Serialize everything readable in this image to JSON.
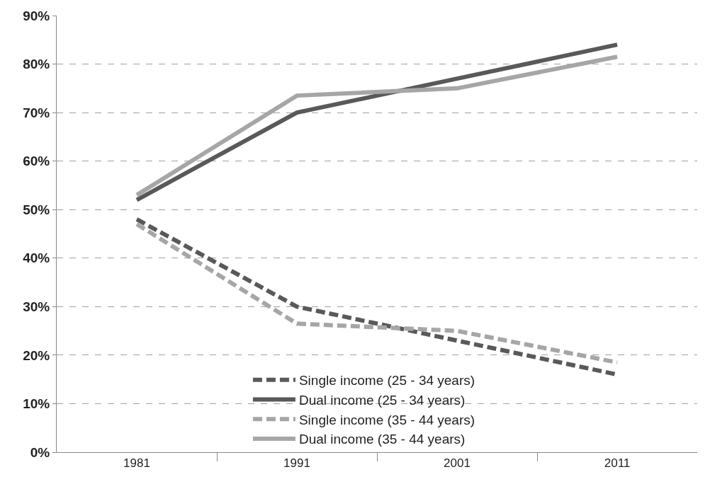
{
  "chart_data": {
    "type": "line",
    "categories": [
      "1981",
      "1991",
      "2001",
      "2011"
    ],
    "series": [
      {
        "name": "Single income (25 - 34 years)",
        "color": "#595959",
        "line_style": "dashed",
        "values": [
          48,
          30,
          23,
          16
        ]
      },
      {
        "name": "Dual income (25 - 34 years)",
        "color": "#595959",
        "line_style": "solid",
        "values": [
          52,
          70,
          77,
          84
        ]
      },
      {
        "name": "Single income (35 - 44 years)",
        "color": "#a6a6a6",
        "line_style": "dashed",
        "values": [
          47,
          26.5,
          25,
          18.5
        ]
      },
      {
        "name": "Dual income (35 - 44 years)",
        "color": "#a6a6a6",
        "line_style": "solid",
        "values": [
          53,
          73.5,
          75,
          81.5
        ]
      }
    ],
    "ylim": [
      0,
      90
    ],
    "yticks": [
      {
        "value": 0,
        "label": "0%"
      },
      {
        "value": 10,
        "label": "10%"
      },
      {
        "value": 20,
        "label": "20%"
      },
      {
        "value": 30,
        "label": "30%"
      },
      {
        "value": 40,
        "label": "40%"
      },
      {
        "value": 50,
        "label": "50%"
      },
      {
        "value": 60,
        "label": "60%"
      },
      {
        "value": 70,
        "label": "70%"
      },
      {
        "value": 80,
        "label": "80%"
      },
      {
        "value": 90,
        "label": "90%"
      }
    ],
    "grid": "y",
    "legend": "bottom"
  }
}
